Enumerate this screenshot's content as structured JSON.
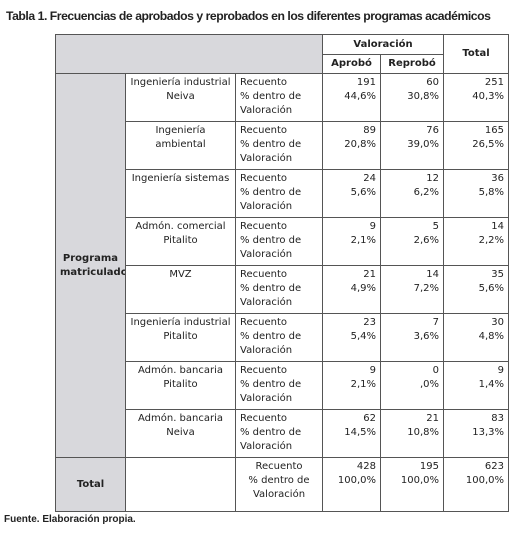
{
  "title": "Tabla 1. Frecuencias de aprobados y reprobados en los diferentes programas académicos",
  "table": {
    "header": {
      "valoracion": "Valoración",
      "aprobo": "Aprobó",
      "reprobo": "Reprobó",
      "total": "Total"
    },
    "row_group": "Programa matriculado",
    "rows": [
      {
        "program": "Ingeniería industrial Neiva",
        "count_label": "Recuento",
        "pct_label": "% dentro de Valoración",
        "aprobo": [
          "191",
          "44,6%"
        ],
        "reprobo": [
          "60",
          "30,8%"
        ],
        "total": [
          "251",
          "40,3%"
        ]
      },
      {
        "program": "Ingeniería ambiental",
        "count_label": "Recuento",
        "pct_label": "% dentro de Valoración",
        "aprobo": [
          "89",
          "20,8%"
        ],
        "reprobo": [
          "76",
          "39,0%"
        ],
        "total": [
          "165",
          "26,5%"
        ]
      },
      {
        "program": "Ingeniería sistemas",
        "count_label": "Recuento",
        "pct_label": "% dentro de Valoración",
        "aprobo": [
          "24",
          "5,6%"
        ],
        "reprobo": [
          "12",
          "6,2%"
        ],
        "total": [
          "36",
          "5,8%"
        ]
      },
      {
        "program": "Admón. comercial Pitalito",
        "count_label": "Recuento",
        "pct_label": "% dentro de Valoración",
        "aprobo": [
          "9",
          "2,1%"
        ],
        "reprobo": [
          "5",
          "2,6%"
        ],
        "total": [
          "14",
          "2,2%"
        ]
      },
      {
        "program": "MVZ",
        "count_label": "Recuento",
        "pct_label": "% dentro de Valoración",
        "aprobo": [
          "21",
          "4,9%"
        ],
        "reprobo": [
          "14",
          "7,2%"
        ],
        "total": [
          "35",
          "5,6%"
        ]
      },
      {
        "program": "Ingeniería industrial Pitalito",
        "count_label": "Recuento",
        "pct_label": "% dentro de Valoración",
        "aprobo": [
          "23",
          "5,4%"
        ],
        "reprobo": [
          "7",
          "3,6%"
        ],
        "total": [
          "30",
          "4,8%"
        ]
      },
      {
        "program": "Admón. bancaria Pitalito",
        "count_label": "Recuento",
        "pct_label": "% dentro de Valoración",
        "aprobo": [
          "9",
          "2,1%"
        ],
        "reprobo": [
          "0",
          ",0%"
        ],
        "total": [
          "9",
          "1,4%"
        ]
      },
      {
        "program": "Admón. bancaria Neiva",
        "count_label": "Recuento",
        "pct_label": "% dentro de Valoración",
        "aprobo": [
          "62",
          "14,5%"
        ],
        "reprobo": [
          "21",
          "10,8%"
        ],
        "total": [
          "83",
          "13,3%"
        ]
      }
    ],
    "total_row": {
      "label": "Total",
      "count_label": "Recuento",
      "pct_label": "% dentro de Valoración",
      "aprobo": [
        "428",
        "100,0%"
      ],
      "reprobo": [
        "195",
        "100,0%"
      ],
      "total": [
        "623",
        "100,0%"
      ]
    }
  },
  "footer": "Fuente. Elaboración propia."
}
